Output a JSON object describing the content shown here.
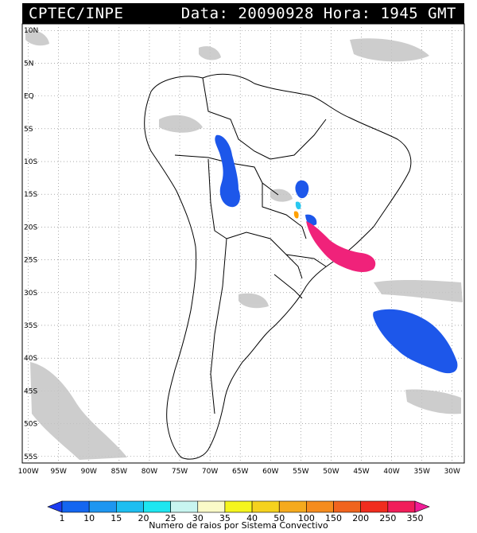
{
  "header": {
    "title": "CPTEC/INPE",
    "datetime": "Data: 20090928 Hora: 1945 GMT"
  },
  "map": {
    "lat_ticks": [
      "10N",
      "5N",
      "EQ",
      "5S",
      "10S",
      "15S",
      "20S",
      "25S",
      "30S",
      "35S",
      "40S",
      "45S",
      "50S",
      "55S"
    ],
    "lon_ticks": [
      "100W",
      "95W",
      "90W",
      "85W",
      "80W",
      "75W",
      "70W",
      "65W",
      "60W",
      "55W",
      "50W",
      "45W",
      "40W",
      "35W",
      "30W"
    ],
    "lat_range": [
      11,
      -56
    ],
    "lon_range": [
      -101,
      -28
    ],
    "colors": {
      "cloud": "#bdbdbd",
      "cell_blue": "#1d57ea",
      "cell_magenta": "#f0227a",
      "cell_orange": "#ffa000",
      "cell_cyan": "#29c8f0"
    }
  },
  "legend": {
    "labels": [
      "1",
      "10",
      "15",
      "20",
      "25",
      "30",
      "35",
      "40",
      "50",
      "100",
      "150",
      "200",
      "250",
      "350"
    ],
    "colors": [
      "#1d3cf0",
      "#1466f0",
      "#1e96f0",
      "#1ebef0",
      "#1ee6f0",
      "#c8f5f0",
      "#fafac8",
      "#f5f51e",
      "#f5d21e",
      "#f5aa1e",
      "#f58c1e",
      "#f0641e",
      "#f02d1e",
      "#f01e5a",
      "#f01e96"
    ],
    "caption": "Numero de raios por Sistema Convectivo"
  }
}
